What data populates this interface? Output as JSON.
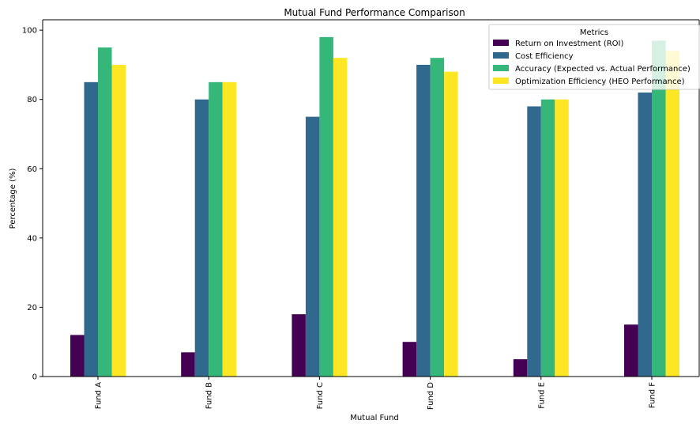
{
  "chart_data": {
    "type": "bar",
    "title": "Mutual Fund Performance Comparison",
    "xlabel": "Mutual Fund",
    "ylabel": "Percentage (%)",
    "ylim": [
      0,
      103
    ],
    "yticks": [
      0,
      20,
      40,
      60,
      80,
      100
    ],
    "grid": false,
    "legend_title": "Metrics",
    "legend_position": "top-right",
    "categories": [
      "Fund A",
      "Fund B",
      "Fund C",
      "Fund D",
      "Fund E",
      "Fund F"
    ],
    "series": [
      {
        "name": "Return on Investment (ROI)",
        "color": "#440154",
        "values": [
          12,
          7,
          18,
          10,
          5,
          15
        ]
      },
      {
        "name": "Cost Efficiency",
        "color": "#31688e",
        "values": [
          85,
          80,
          75,
          90,
          78,
          82
        ]
      },
      {
        "name": "Accuracy (Expected vs. Actual Performance)",
        "color": "#35b779",
        "values": [
          95,
          85,
          98,
          92,
          80,
          97
        ]
      },
      {
        "name": "Optimization Efficiency (HEO Performance)",
        "color": "#fde725",
        "values": [
          90,
          85,
          92,
          88,
          80,
          94
        ]
      }
    ]
  }
}
